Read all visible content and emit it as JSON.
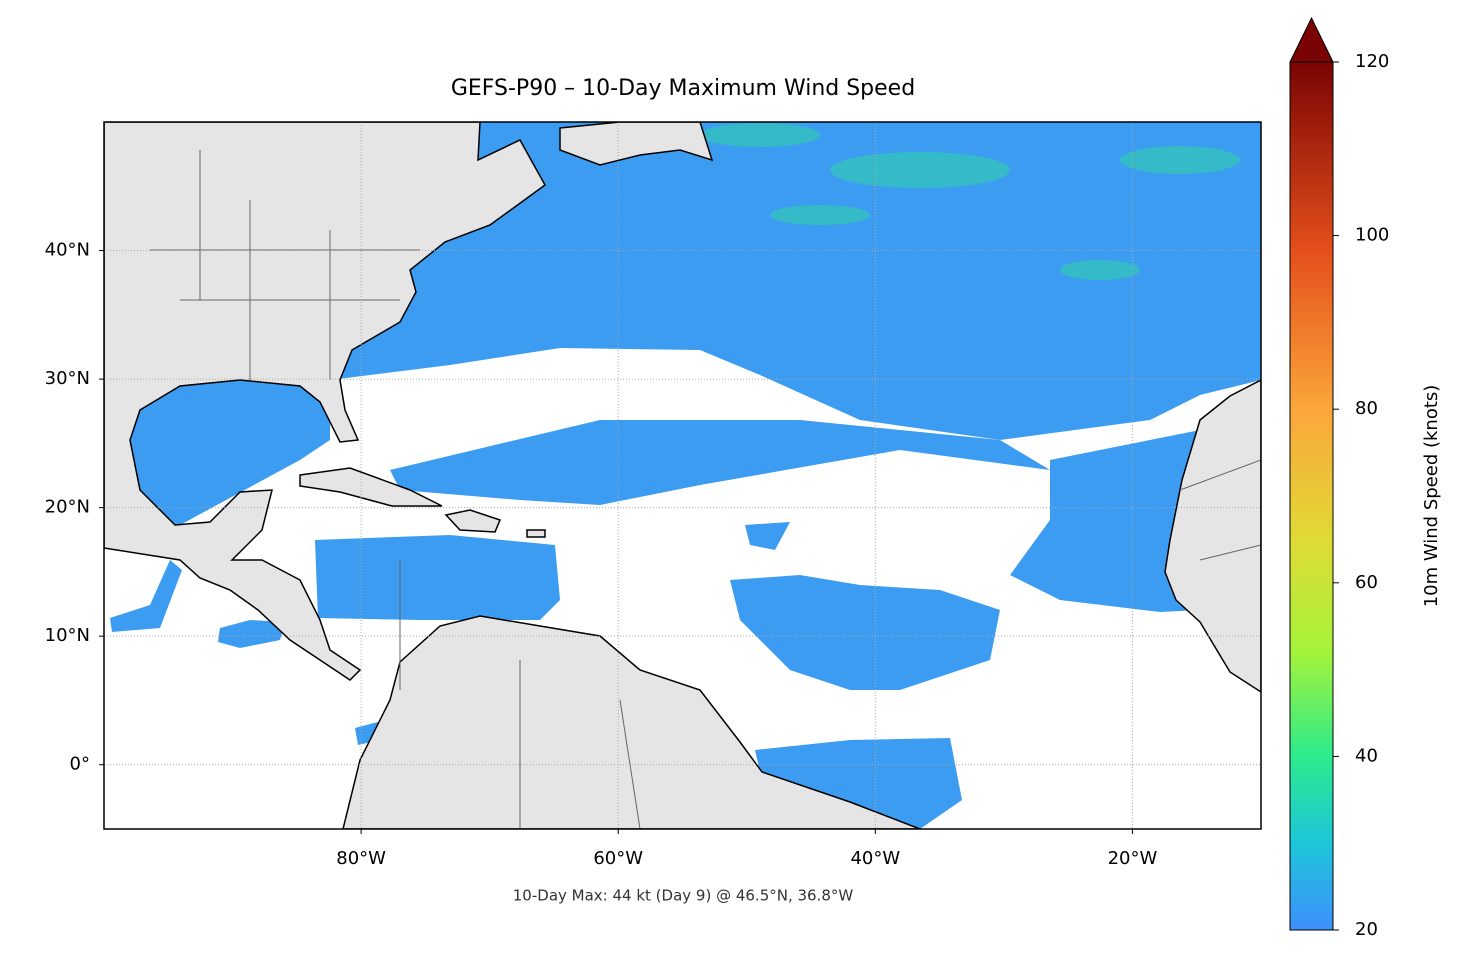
{
  "chart_data": {
    "type": "map",
    "title": "GEFS-P90 – 10-Day Maximum Wind Speed",
    "annotation": "10-Day Max: 44 kt (Day 9) @ 46.5°N, 36.8°W",
    "xlim": [
      -100,
      -10
    ],
    "ylim": [
      -5,
      50
    ],
    "xticks": [
      {
        "value": -80,
        "label": "80°W"
      },
      {
        "value": -60,
        "label": "60°W"
      },
      {
        "value": -40,
        "label": "40°W"
      },
      {
        "value": -20,
        "label": "20°W"
      }
    ],
    "yticks": [
      {
        "value": 0,
        "label": "0°"
      },
      {
        "value": 10,
        "label": "10°N"
      },
      {
        "value": 20,
        "label": "20°N"
      },
      {
        "value": 30,
        "label": "30°N"
      },
      {
        "value": 40,
        "label": "40°N"
      }
    ],
    "grid": true,
    "colorbar": {
      "label": "10m Wind Speed (knots)",
      "lim": [
        20,
        120
      ],
      "ticks": [
        20,
        40,
        60,
        80,
        100,
        120
      ],
      "extend": "max"
    }
  }
}
